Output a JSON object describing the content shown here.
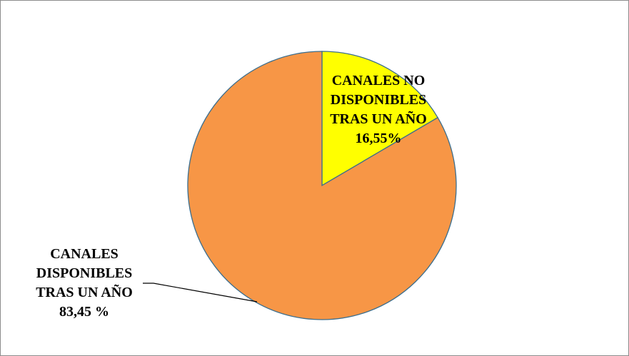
{
  "chart_data": {
    "type": "pie",
    "categories": [
      "CANALES NO DISPONIBLES TRAS UN AÑO",
      "CANALES DISPONIBLES TRAS UN AÑO"
    ],
    "values": [
      16.55,
      83.45
    ],
    "value_labels": [
      "16,55%",
      "83,45 %"
    ],
    "colors": [
      "#ffff00",
      "#f79646"
    ]
  }
}
